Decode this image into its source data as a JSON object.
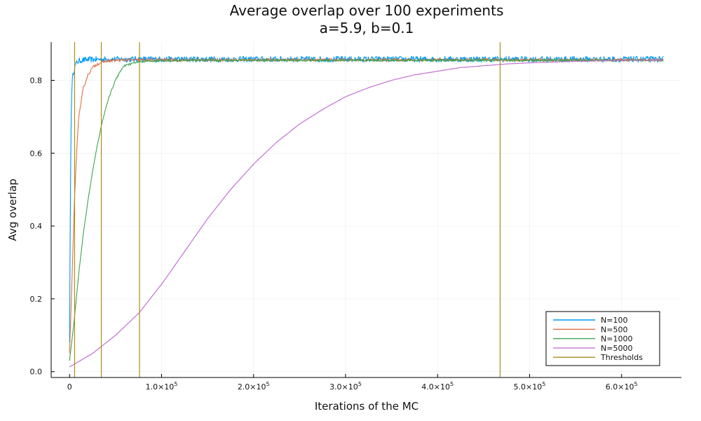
{
  "chart_data": {
    "type": "line",
    "title": "Average overlap over 100 experiments",
    "subtitle": "a=5.9, b=0.1",
    "xlabel": "Iterations of the MC",
    "ylabel": "Avg overlap",
    "xlim": [
      -20000,
      665000
    ],
    "ylim": [
      -0.016,
      0.905
    ],
    "x_ticks": [
      {
        "value": 0,
        "mantissa": "0",
        "exp": ""
      },
      {
        "value": 100000,
        "mantissa": "1.0×10",
        "exp": "5"
      },
      {
        "value": 200000,
        "mantissa": "2.0×10",
        "exp": "5"
      },
      {
        "value": 300000,
        "mantissa": "3.0×10",
        "exp": "5"
      },
      {
        "value": 400000,
        "mantissa": "4.0×10",
        "exp": "5"
      },
      {
        "value": 500000,
        "mantissa": "5.0×10",
        "exp": "5"
      },
      {
        "value": 600000,
        "mantissa": "6.0×10",
        "exp": "5"
      }
    ],
    "y_ticks": [
      {
        "value": 0.0,
        "label": "0.0"
      },
      {
        "value": 0.2,
        "label": "0.2"
      },
      {
        "value": 0.4,
        "label": "0.4"
      },
      {
        "value": 0.6,
        "label": "0.6"
      },
      {
        "value": 0.8,
        "label": "0.8"
      }
    ],
    "grid": true,
    "legend_position": "bottom-right",
    "series": [
      {
        "name": "N=100",
        "color": "#009af9",
        "noise": 0.008,
        "x": [
          0,
          1000,
          2000,
          3000,
          4000,
          6000,
          8000,
          12000,
          20000,
          40000,
          100000,
          200000,
          300000,
          400000,
          500000,
          646000
        ],
        "y": [
          0.08,
          0.5,
          0.75,
          0.8,
          0.82,
          0.84,
          0.85,
          0.855,
          0.857,
          0.858,
          0.858,
          0.858,
          0.858,
          0.858,
          0.858,
          0.858
        ]
      },
      {
        "name": "N=500",
        "color": "#e26f46",
        "noise": 0.004,
        "x": [
          0,
          2000,
          5000,
          8000,
          10000,
          15000,
          20000,
          25000,
          30000,
          40000,
          50000,
          60000,
          100000,
          200000,
          300000,
          400000,
          500000,
          646000
        ],
        "y": [
          0.05,
          0.2,
          0.45,
          0.62,
          0.7,
          0.78,
          0.815,
          0.835,
          0.845,
          0.853,
          0.855,
          0.856,
          0.856,
          0.856,
          0.856,
          0.856,
          0.856,
          0.856
        ]
      },
      {
        "name": "N=1000",
        "color": "#3da44d",
        "noise": 0.003,
        "x": [
          0,
          5000,
          10000,
          15000,
          20000,
          25000,
          30000,
          35000,
          40000,
          45000,
          50000,
          55000,
          60000,
          70000,
          80000,
          100000,
          150000,
          200000,
          300000,
          400000,
          500000,
          646000
        ],
        "y": [
          0.03,
          0.14,
          0.27,
          0.38,
          0.47,
          0.55,
          0.62,
          0.68,
          0.73,
          0.77,
          0.8,
          0.825,
          0.84,
          0.848,
          0.852,
          0.854,
          0.855,
          0.855,
          0.855,
          0.855,
          0.855,
          0.855
        ]
      },
      {
        "name": "N=5000",
        "color": "#c271d2",
        "noise": 0,
        "x": [
          0,
          25000,
          50000,
          75000,
          100000,
          125000,
          150000,
          175000,
          200000,
          225000,
          250000,
          275000,
          300000,
          325000,
          350000,
          375000,
          400000,
          425000,
          450000,
          475000,
          500000,
          550000,
          600000,
          646000
        ],
        "y": [
          0.013,
          0.05,
          0.1,
          0.16,
          0.24,
          0.33,
          0.42,
          0.5,
          0.57,
          0.63,
          0.68,
          0.72,
          0.755,
          0.78,
          0.8,
          0.815,
          0.825,
          0.835,
          0.84,
          0.845,
          0.848,
          0.852,
          0.855,
          0.856
        ]
      }
    ],
    "thresholds": {
      "name": "Thresholds",
      "color": "#ac8d18",
      "x": [
        5500,
        34500,
        76000,
        468000
      ]
    }
  }
}
